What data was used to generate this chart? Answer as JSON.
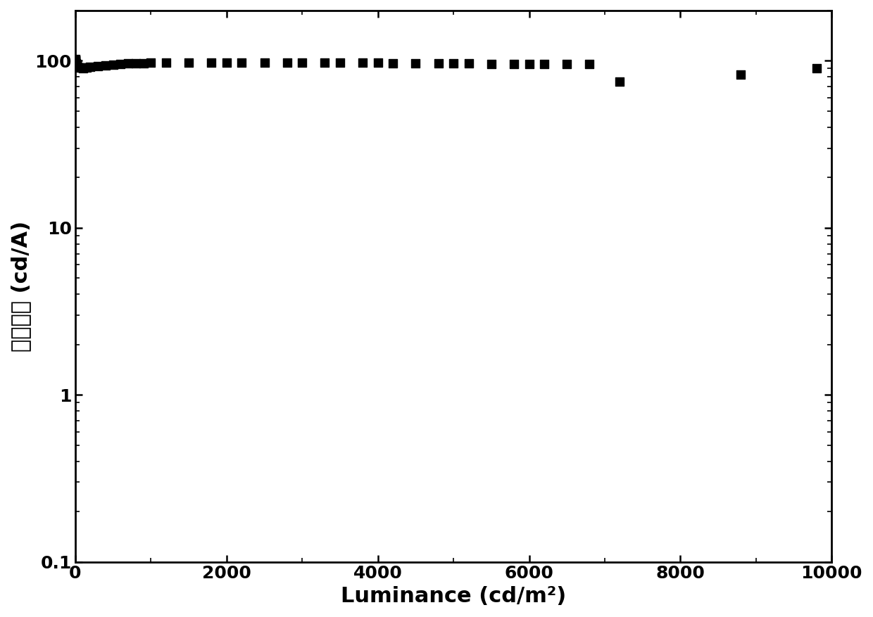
{
  "x_data": [
    0.5,
    1,
    2,
    3,
    5,
    8,
    10,
    15,
    20,
    30,
    50,
    80,
    100,
    150,
    200,
    300,
    400,
    500,
    600,
    700,
    800,
    900,
    1000,
    1200,
    1500,
    1800,
    2000,
    2200,
    2500,
    2800,
    3000,
    3300,
    3500,
    3800,
    4000,
    4200,
    4500,
    4800,
    5000,
    5200,
    5500,
    5800,
    6000,
    6200,
    6500,
    6800,
    7200,
    8800,
    9800
  ],
  "y_data": [
    100,
    102,
    101,
    100,
    98,
    97,
    96,
    95,
    94,
    92,
    91,
    91,
    90,
    91,
    92,
    93,
    94,
    95,
    96,
    97,
    97,
    97,
    98,
    98,
    98,
    98,
    98,
    98,
    98,
    98,
    98,
    98,
    98,
    98,
    98,
    97,
    97,
    97,
    97,
    97,
    96,
    96,
    96,
    96,
    96,
    96,
    75,
    83,
    90
  ],
  "xlabel": "Luminance (cd/m²)",
  "ylabel": "电流效率 (cd/A)",
  "xlim": [
    0,
    10000
  ],
  "ylim": [
    0.1,
    200
  ],
  "yticks": [
    0.1,
    1,
    10,
    100
  ],
  "ytick_labels": [
    "0.1",
    "1",
    "10",
    "100"
  ],
  "xticks": [
    0,
    2000,
    4000,
    6000,
    8000,
    10000
  ],
  "xtick_labels": [
    "0",
    "2000",
    "4000",
    "6000",
    "8000",
    "10000"
  ],
  "marker": "s",
  "marker_color": "black",
  "marker_size": 64,
  "background_color": "#ffffff",
  "axis_color": "#000000",
  "xlabel_fontsize": 22,
  "ylabel_fontsize": 22,
  "tick_fontsize": 18,
  "spine_linewidth": 2.0
}
